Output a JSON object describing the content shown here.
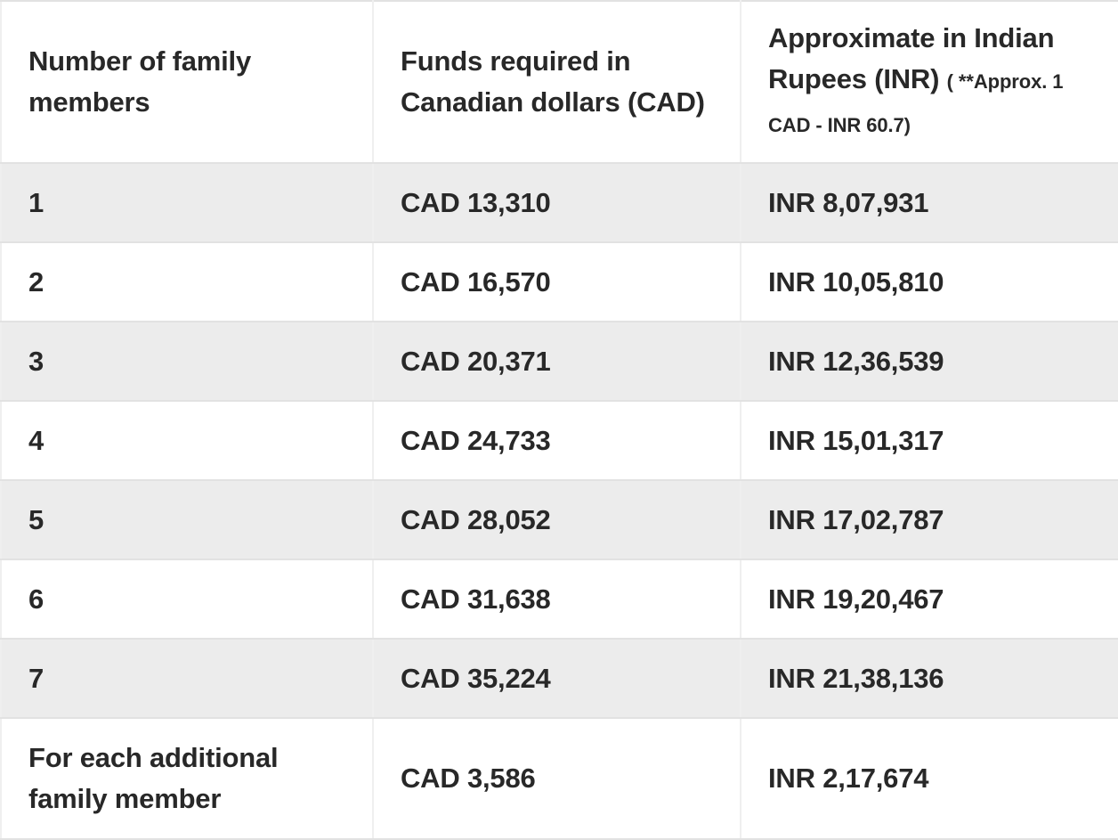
{
  "colors": {
    "stripe_row_background": "#ececec",
    "plain_row_background": "#ffffff",
    "row_border": "#e2e2e2",
    "column_border": "#efefef",
    "text": "#282828"
  },
  "table": {
    "columns": [
      {
        "id": "members",
        "label": "Number of family members"
      },
      {
        "id": "cad",
        "label": "Funds required in Canadian dollars (CAD)"
      },
      {
        "id": "inr",
        "label": "Approximate in Indian Rupees (INR)",
        "note": "( **Approx. 1 CAD - INR 60.7)"
      }
    ],
    "rows": [
      {
        "members": "1",
        "cad": "CAD 13,310",
        "inr": "INR 8,07,931"
      },
      {
        "members": "2",
        "cad": "CAD 16,570",
        "inr": "INR 10,05,810"
      },
      {
        "members": "3",
        "cad": "CAD 20,371",
        "inr": "INR 12,36,539"
      },
      {
        "members": "4",
        "cad": "CAD 24,733",
        "inr": "INR 15,01,317"
      },
      {
        "members": "5",
        "cad": "CAD 28,052",
        "inr": "INR 17,02,787"
      },
      {
        "members": "6",
        "cad": "CAD 31,638",
        "inr": "INR 19,20,467"
      },
      {
        "members": "7",
        "cad": "CAD 35,224",
        "inr": "INR 21,38,136"
      },
      {
        "members": "For each additional family member",
        "cad": "CAD 3,586",
        "inr": "INR 2,17,674"
      }
    ]
  }
}
